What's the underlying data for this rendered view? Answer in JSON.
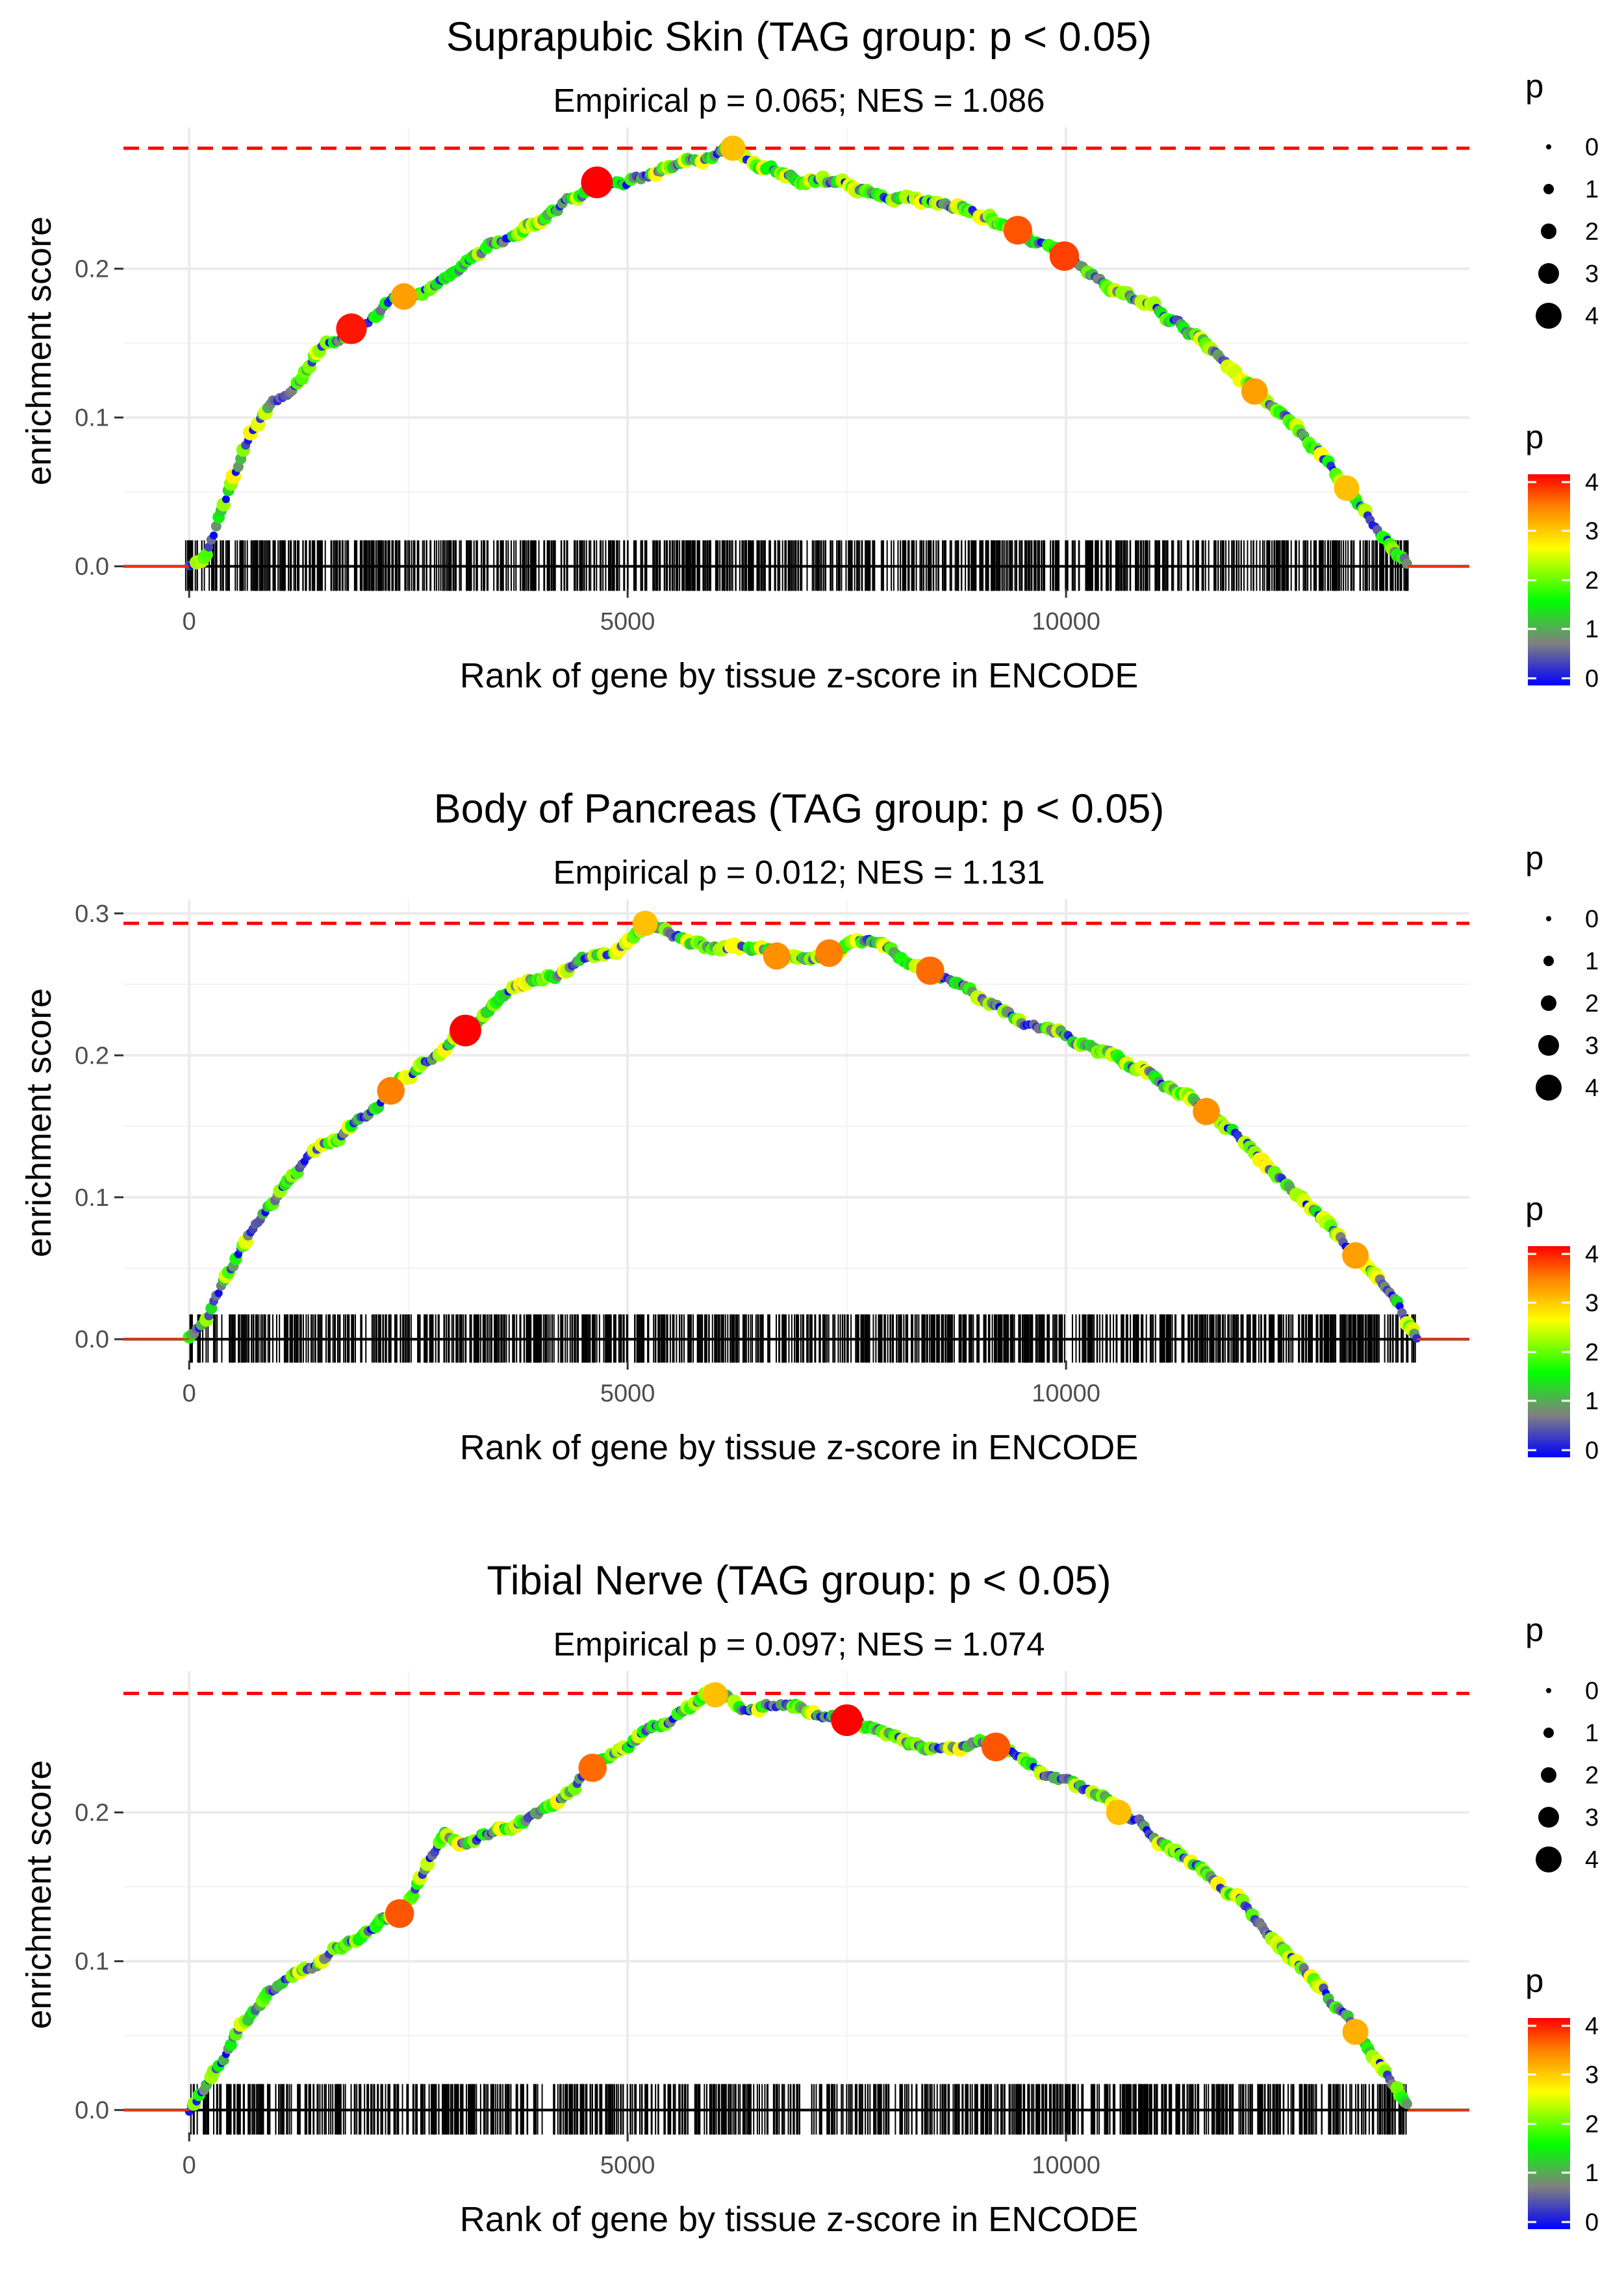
{
  "chart_data": [
    {
      "type": "line",
      "title": "Suprapubic Skin (TAG group: p < 0.05)",
      "subtitle": "Empirical p = 0.065; NES = 1.086",
      "xlabel": "Rank of gene by tissue z-score in ENCODE",
      "ylabel": "enrichment score",
      "xlim": [
        -750,
        14600
      ],
      "ylim": [
        -0.015,
        0.295
      ],
      "x_ticks": [
        0,
        5000,
        10000
      ],
      "x_tick_labels": [
        "0",
        "5000",
        "10000"
      ],
      "y_ticks": [
        0.0,
        0.1,
        0.2
      ],
      "y_tick_labels": [
        "0.0",
        "0.1",
        "0.2"
      ],
      "max_es": 0.281,
      "curve": {
        "x": [
          0,
          200,
          300,
          500,
          700,
          900,
          1100,
          1300,
          1500,
          1800,
          2100,
          2400,
          2700,
          3000,
          3200,
          3400,
          3700,
          4000,
          4300,
          4650,
          5000,
          5400,
          5800,
          6200,
          6600,
          7000,
          7500,
          8000,
          8500,
          9000,
          9400,
          9700,
          10000,
          10500,
          11000,
          11500,
          12000,
          12500,
          13000,
          13400,
          13700,
          13900
        ],
        "y": [
          0.0,
          0.008,
          0.025,
          0.06,
          0.09,
          0.105,
          0.115,
          0.13,
          0.148,
          0.158,
          0.168,
          0.18,
          0.188,
          0.198,
          0.21,
          0.216,
          0.222,
          0.235,
          0.245,
          0.258,
          0.26,
          0.266,
          0.275,
          0.281,
          0.268,
          0.26,
          0.255,
          0.25,
          0.245,
          0.238,
          0.228,
          0.215,
          0.208,
          0.19,
          0.175,
          0.155,
          0.125,
          0.1,
          0.07,
          0.035,
          0.012,
          0.0
        ]
      },
      "highlights": [
        {
          "x": 1850,
          "p": 3.9
        },
        {
          "x": 2450,
          "p": 3.2
        },
        {
          "x": 4650,
          "p": 4.1
        },
        {
          "x": 6200,
          "p": 3.0
        },
        {
          "x": 9450,
          "p": 3.6
        },
        {
          "x": 9980,
          "p": 3.7
        },
        {
          "x": 12150,
          "p": 3.2
        },
        {
          "x": 13200,
          "p": 3.0
        }
      ],
      "rug_range": [
        -40,
        13900
      ],
      "rug_count": 950,
      "rug_gaps": []
    },
    {
      "type": "line",
      "title": "Body of Pancreas (TAG group: p < 0.05)",
      "subtitle": "Empirical p = 0.012; NES = 1.131",
      "xlabel": "Rank of gene by tissue z-score in ENCODE",
      "ylabel": "enrichment score",
      "xlim": [
        -750,
        14600
      ],
      "ylim": [
        -0.015,
        0.31
      ],
      "x_ticks": [
        0,
        5000,
        10000
      ],
      "x_tick_labels": [
        "0",
        "5000",
        "10000"
      ],
      "y_ticks": [
        0.0,
        0.1,
        0.2,
        0.3
      ],
      "y_tick_labels": [
        "0.0",
        "0.1",
        "0.2",
        "0.3"
      ],
      "max_es": 0.293,
      "curve": {
        "x": [
          0,
          200,
          400,
          600,
          800,
          1000,
          1200,
          1400,
          1700,
          2000,
          2300,
          2600,
          2900,
          3100,
          3400,
          3700,
          4000,
          4300,
          4600,
          4900,
          5200,
          5500,
          5800,
          6100,
          6400,
          6700,
          7000,
          7300,
          7600,
          7900,
          8200,
          8500,
          8800,
          9100,
          9400,
          9700,
          10000,
          10500,
          11000,
          11500,
          12000,
          12500,
          13000,
          13500,
          13800,
          14000
        ],
        "y": [
          0.0,
          0.012,
          0.04,
          0.065,
          0.085,
          0.1,
          0.115,
          0.13,
          0.142,
          0.155,
          0.175,
          0.19,
          0.205,
          0.215,
          0.23,
          0.25,
          0.255,
          0.26,
          0.27,
          0.275,
          0.293,
          0.285,
          0.278,
          0.276,
          0.274,
          0.27,
          0.268,
          0.272,
          0.282,
          0.278,
          0.268,
          0.258,
          0.248,
          0.238,
          0.228,
          0.22,
          0.212,
          0.198,
          0.185,
          0.165,
          0.142,
          0.11,
          0.08,
          0.045,
          0.02,
          0.0
        ]
      },
      "highlights": [
        {
          "x": 2300,
          "p": 3.4
        },
        {
          "x": 3150,
          "p": 4.1
        },
        {
          "x": 5200,
          "p": 3.0
        },
        {
          "x": 6700,
          "p": 3.3
        },
        {
          "x": 7300,
          "p": 3.4
        },
        {
          "x": 8450,
          "p": 3.5
        },
        {
          "x": 11600,
          "p": 3.3
        },
        {
          "x": 13300,
          "p": 3.2
        }
      ],
      "rug_range": [
        -40,
        14000
      ],
      "rug_count": 1000,
      "rug_gaps": []
    },
    {
      "type": "line",
      "title": "Tibial Nerve (TAG group: p < 0.05)",
      "subtitle": "Empirical p = 0.097; NES = 1.074",
      "xlabel": "Rank of gene by tissue z-score in ENCODE",
      "ylabel": "enrichment score",
      "xlim": [
        -750,
        14600
      ],
      "ylim": [
        -0.015,
        0.295
      ],
      "x_ticks": [
        0,
        5000,
        10000
      ],
      "x_tick_labels": [
        "0",
        "5000",
        "10000"
      ],
      "y_ticks": [
        0.0,
        0.1,
        0.2
      ],
      "y_tick_labels": [
        "0.0",
        "0.1",
        "0.2"
      ],
      "max_es": 0.28,
      "curve": {
        "x": [
          0,
          200,
          400,
          600,
          900,
          1200,
          1500,
          1800,
          2100,
          2400,
          2700,
          2900,
          3100,
          3400,
          3700,
          4000,
          4300,
          4600,
          4900,
          5200,
          5500,
          5800,
          6000,
          6300,
          6600,
          6900,
          7200,
          7500,
          7800,
          8100,
          8400,
          8700,
          9000,
          9300,
          9600,
          10000,
          10400,
          10800,
          11200,
          11600,
          12000,
          12500,
          13000,
          13400,
          13700,
          13900
        ],
        "y": [
          0.0,
          0.018,
          0.035,
          0.06,
          0.08,
          0.09,
          0.1,
          0.11,
          0.12,
          0.132,
          0.16,
          0.188,
          0.18,
          0.185,
          0.19,
          0.2,
          0.215,
          0.23,
          0.24,
          0.255,
          0.265,
          0.275,
          0.279,
          0.27,
          0.272,
          0.27,
          0.265,
          0.262,
          0.255,
          0.25,
          0.245,
          0.245,
          0.248,
          0.242,
          0.232,
          0.22,
          0.208,
          0.192,
          0.178,
          0.16,
          0.14,
          0.108,
          0.075,
          0.045,
          0.02,
          0.0
        ]
      },
      "highlights": [
        {
          "x": 2400,
          "p": 3.6
        },
        {
          "x": 4600,
          "p": 3.5
        },
        {
          "x": 6000,
          "p": 3.0
        },
        {
          "x": 7500,
          "p": 4.1
        },
        {
          "x": 9200,
          "p": 3.6
        },
        {
          "x": 10600,
          "p": 3.0
        },
        {
          "x": 13300,
          "p": 3.1
        }
      ],
      "rug_range": [
        -40,
        13900
      ],
      "rug_count": 900,
      "rug_gaps": []
    }
  ],
  "legend": {
    "size_title": "p",
    "size_labels": [
      "0",
      "1",
      "2",
      "3",
      "4"
    ],
    "color_title": "p",
    "color_labels": [
      "4",
      "3",
      "2",
      "1",
      "0"
    ]
  },
  "colors": {
    "max_line": "#ff0000",
    "gradient": [
      "#0000ff",
      "#808080",
      "#00ff00",
      "#ffff00",
      "#ff8000",
      "#ff0000"
    ],
    "grid": "#ebebeb",
    "rug": "#000000"
  }
}
